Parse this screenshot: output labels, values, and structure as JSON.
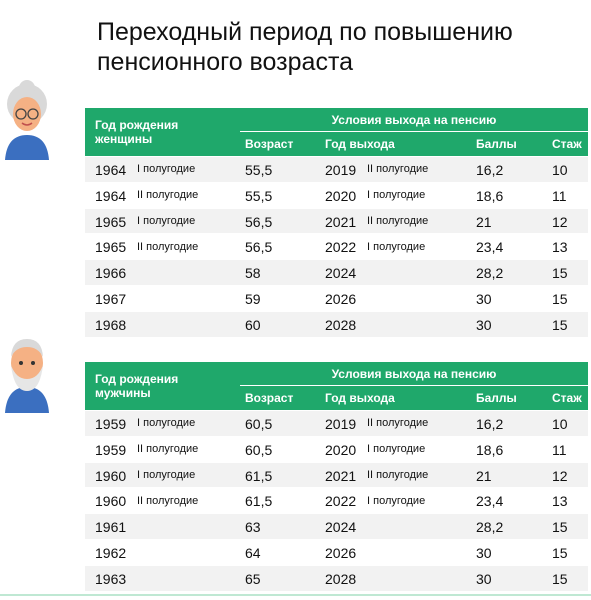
{
  "title": [
    "Переходный период по повышению",
    "пенсионного возраста"
  ],
  "tables": [
    {
      "header": {
        "birth": [
          "Год рождения",
          "женщины"
        ],
        "conditions": "Условия выхода на пенсию",
        "columns": [
          "Возраст",
          "Год выхода",
          "Баллы",
          "Стаж"
        ]
      },
      "rows": [
        {
          "year": "1964",
          "half": "I полугодие",
          "age": "55,5",
          "exit_year": "2019",
          "exit_half": "II полугодие",
          "points": "16,2",
          "service": "10"
        },
        {
          "year": "1964",
          "half": "II полугодие",
          "age": "55,5",
          "exit_year": "2020",
          "exit_half": "I полугодие",
          "points": "18,6",
          "service": "11"
        },
        {
          "year": "1965",
          "half": "I полугодие",
          "age": "56,5",
          "exit_year": "2021",
          "exit_half": "II полугодие",
          "points": "21",
          "service": "12"
        },
        {
          "year": "1965",
          "half": "II полугодие",
          "age": "56,5",
          "exit_year": "2022",
          "exit_half": "I полугодие",
          "points": "23,4",
          "service": "13"
        },
        {
          "year": "1966",
          "age": "58",
          "exit_year": "2024",
          "points": "28,2",
          "service": "15"
        },
        {
          "year": "1967",
          "age": "59",
          "exit_year": "2026",
          "points": "30",
          "service": "15"
        },
        {
          "year": "1968",
          "age": "60",
          "exit_year": "2028",
          "points": "30",
          "service": "15"
        }
      ]
    },
    {
      "header": {
        "birth": [
          "Год рождения",
          "мужчины"
        ],
        "conditions": "Условия выхода на пенсию",
        "columns": [
          "Возраст",
          "Год выхода",
          "Баллы",
          "Стаж"
        ]
      },
      "rows": [
        {
          "year": "1959",
          "half": "I полугодие",
          "age": "60,5",
          "exit_year": "2019",
          "exit_half": "II полугодие",
          "points": "16,2",
          "service": "10"
        },
        {
          "year": "1959",
          "half": "II полугодие",
          "age": "60,5",
          "exit_year": "2020",
          "exit_half": "I полугодие",
          "points": "18,6",
          "service": "11"
        },
        {
          "year": "1960",
          "half": "I полугодие",
          "age": "61,5",
          "exit_year": "2021",
          "exit_half": "II полугодие",
          "points": "21",
          "service": "12"
        },
        {
          "year": "1960",
          "half": "II полугодие",
          "age": "61,5",
          "exit_year": "2022",
          "exit_half": "I полугодие",
          "points": "23,4",
          "service": "13"
        },
        {
          "year": "1961",
          "age": "63",
          "exit_year": "2024",
          "points": "28,2",
          "service": "15"
        },
        {
          "year": "1962",
          "age": "64",
          "exit_year": "2026",
          "points": "30",
          "service": "15"
        },
        {
          "year": "1963",
          "age": "65",
          "exit_year": "2028",
          "points": "30",
          "service": "15"
        }
      ]
    }
  ]
}
